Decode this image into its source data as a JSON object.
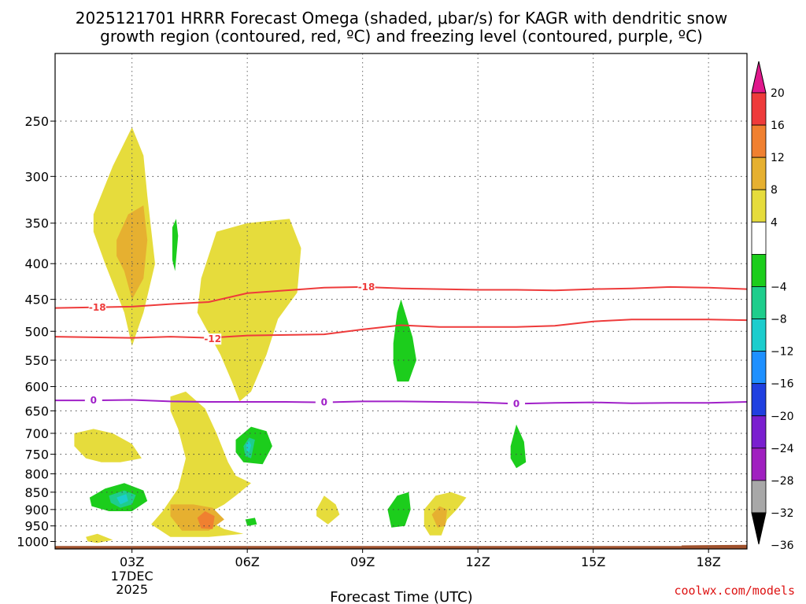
{
  "header": {
    "title_line1": "2025121701 HRRR Forecast Omega (shaded, μbar/s) for KAGR with dendritic snow",
    "title_line2": "growth region (contoured, red, ºC) and freezing level (contoured, purple, ºC)"
  },
  "credit": "coolwx.com/models",
  "chart_data": {
    "type": "time-height cross-section",
    "title": "2025121701 HRRR Forecast Omega (shaded, μbar/s) for KAGR with dendritic snow growth region (contoured, red, ºC) and freezing level (contoured, purple, ºC)",
    "xlabel": "Forecast Time (UTC)",
    "ylabel": "",
    "x_range_hours": [
      1,
      19
    ],
    "y_range_hPa": [
      1025,
      200
    ],
    "y_scale": "log-pressure",
    "x_ticks": [
      {
        "hour": 3,
        "label": "03Z",
        "sublabel1": "17DEC",
        "sublabel2": "2025"
      },
      {
        "hour": 6,
        "label": "06Z"
      },
      {
        "hour": 9,
        "label": "09Z"
      },
      {
        "hour": 12,
        "label": "12Z"
      },
      {
        "hour": 15,
        "label": "15Z"
      },
      {
        "hour": 18,
        "label": "18Z"
      }
    ],
    "y_ticks": [
      250,
      300,
      350,
      400,
      450,
      500,
      550,
      600,
      650,
      700,
      750,
      800,
      850,
      900,
      950,
      1000
    ],
    "grid": true,
    "colorbar": {
      "position": "right",
      "labels": [
        "20",
        "16",
        "12",
        "8",
        "4",
        "-4",
        "-8",
        "-12",
        "-16",
        "-20",
        "-24",
        "-28",
        "-32",
        "-36"
      ],
      "bins": [
        {
          "range": [
            20,
            99
          ],
          "color": "#e0188c"
        },
        {
          "range": [
            16,
            20
          ],
          "color": "#ee3b3b"
        },
        {
          "range": [
            12,
            16
          ],
          "color": "#f08030"
        },
        {
          "range": [
            8,
            12
          ],
          "color": "#e6b030"
        },
        {
          "range": [
            4,
            8
          ],
          "color": "#e6dc3c"
        },
        {
          "range": [
            -4,
            4
          ],
          "color": "#ffffff"
        },
        {
          "range": [
            -8,
            -4
          ],
          "color": "#1ccd1c"
        },
        {
          "range": [
            -12,
            -8
          ],
          "color": "#1ecd8c"
        },
        {
          "range": [
            -16,
            -12
          ],
          "color": "#1ccdcd"
        },
        {
          "range": [
            -20,
            -16
          ],
          "color": "#1e90ff"
        },
        {
          "range": [
            -24,
            -20
          ],
          "color": "#2040e0"
        },
        {
          "range": [
            -28,
            -24
          ],
          "color": "#7a1fcf"
        },
        {
          "range": [
            -32,
            -28
          ],
          "color": "#a020c0"
        },
        {
          "range": [
            -36,
            -32
          ],
          "color": "#a8a8a8"
        },
        {
          "range": [
            -99,
            -36
          ],
          "color": "#000000"
        }
      ]
    },
    "contours": [
      {
        "name": "-18",
        "color": "#ee3b3b",
        "points": [
          [
            1.0,
            463
          ],
          [
            2.0,
            462
          ],
          [
            3.0,
            461
          ],
          [
            4.0,
            457
          ],
          [
            5.0,
            454
          ],
          [
            6.0,
            441
          ],
          [
            7.0,
            437
          ],
          [
            8.0,
            433
          ],
          [
            9.0,
            432
          ],
          [
            10.0,
            434
          ],
          [
            11.0,
            435
          ],
          [
            12.0,
            436
          ],
          [
            13.0,
            436
          ],
          [
            14.0,
            437
          ],
          [
            15.0,
            435
          ],
          [
            16.0,
            434
          ],
          [
            17.0,
            432
          ],
          [
            18.0,
            433
          ],
          [
            19.0,
            435
          ]
        ],
        "label_positions": [
          [
            2.1,
            462
          ],
          [
            9.1,
            432
          ]
        ]
      },
      {
        "name": "-12",
        "color": "#ee3b3b",
        "points": [
          [
            1.0,
            509
          ],
          [
            2.0,
            510
          ],
          [
            3.0,
            511
          ],
          [
            4.0,
            509
          ],
          [
            5.0,
            511
          ],
          [
            6.0,
            507
          ],
          [
            7.0,
            506
          ],
          [
            8.0,
            505
          ],
          [
            9.0,
            497
          ],
          [
            10.0,
            490
          ],
          [
            11.0,
            493
          ],
          [
            12.0,
            493
          ],
          [
            13.0,
            493
          ],
          [
            14.0,
            491
          ],
          [
            15.0,
            484
          ],
          [
            16.0,
            481
          ],
          [
            17.0,
            481
          ],
          [
            18.0,
            481
          ],
          [
            19.0,
            482
          ]
        ],
        "label_positions": [
          [
            5.1,
            513
          ]
        ]
      },
      {
        "name": "0",
        "color": "#a020c8",
        "points": [
          [
            1.0,
            628
          ],
          [
            2.0,
            628
          ],
          [
            3.0,
            627
          ],
          [
            4.0,
            630
          ],
          [
            5.0,
            631
          ],
          [
            6.0,
            631
          ],
          [
            7.0,
            631
          ],
          [
            8.0,
            632
          ],
          [
            9.0,
            630
          ],
          [
            10.0,
            630
          ],
          [
            11.0,
            631
          ],
          [
            12.0,
            632
          ],
          [
            13.0,
            635
          ],
          [
            14.0,
            633
          ],
          [
            15.0,
            632
          ],
          [
            16.0,
            634
          ],
          [
            17.0,
            633
          ],
          [
            18.0,
            633
          ],
          [
            19.0,
            631
          ]
        ],
        "label_positions": [
          [
            2.0,
            628
          ],
          [
            8.0,
            632
          ],
          [
            13.0,
            635
          ]
        ]
      }
    ],
    "shaded_regions": [
      {
        "color": "#e6dc3c",
        "points": [
          [
            2.0,
            340
          ],
          [
            2.5,
            290
          ],
          [
            3.0,
            255
          ],
          [
            3.3,
            280
          ],
          [
            3.4,
            320
          ],
          [
            3.6,
            400
          ],
          [
            3.3,
            470
          ],
          [
            3.0,
            525
          ],
          [
            2.8,
            470
          ],
          [
            2.3,
            400
          ],
          [
            2.0,
            360
          ]
        ]
      },
      {
        "color": "#e6b030",
        "points": [
          [
            2.6,
            370
          ],
          [
            2.9,
            340
          ],
          [
            3.3,
            330
          ],
          [
            3.4,
            370
          ],
          [
            3.3,
            420
          ],
          [
            3.0,
            450
          ],
          [
            2.8,
            410
          ],
          [
            2.6,
            390
          ]
        ]
      },
      {
        "color": "#e6dc3c",
        "points": [
          [
            4.8,
            420
          ],
          [
            5.2,
            360
          ],
          [
            6.0,
            350
          ],
          [
            7.1,
            345
          ],
          [
            7.4,
            380
          ],
          [
            7.3,
            440
          ],
          [
            6.8,
            480
          ],
          [
            6.5,
            540
          ],
          [
            6.1,
            610
          ],
          [
            5.8,
            630
          ],
          [
            5.6,
            590
          ],
          [
            5.3,
            540
          ],
          [
            4.7,
            470
          ]
        ]
      },
      {
        "color": "#1ccd1c",
        "points": [
          [
            4.05,
            355
          ],
          [
            4.15,
            345
          ],
          [
            4.2,
            365
          ],
          [
            4.12,
            410
          ],
          [
            4.05,
            395
          ]
        ]
      },
      {
        "color": "#1ccd1c",
        "points": [
          [
            9.8,
            520
          ],
          [
            9.9,
            470
          ],
          [
            10.0,
            450
          ],
          [
            10.3,
            510
          ],
          [
            10.4,
            550
          ],
          [
            10.2,
            590
          ],
          [
            9.9,
            590
          ],
          [
            9.8,
            555
          ]
        ]
      },
      {
        "color": "#e6dc3c",
        "points": [
          [
            1.5,
            700
          ],
          [
            2.0,
            690
          ],
          [
            2.5,
            700
          ],
          [
            3.0,
            725
          ],
          [
            3.25,
            760
          ],
          [
            2.7,
            770
          ],
          [
            2.2,
            770
          ],
          [
            1.8,
            760
          ],
          [
            1.5,
            730
          ]
        ]
      },
      {
        "color": "#e6dc3c",
        "points": [
          [
            4.0,
            620
          ],
          [
            4.4,
            610
          ],
          [
            4.9,
            645
          ],
          [
            5.2,
            700
          ],
          [
            5.5,
            770
          ],
          [
            5.7,
            805
          ],
          [
            6.1,
            825
          ],
          [
            5.7,
            860
          ],
          [
            5.4,
            885
          ],
          [
            5.0,
            910
          ],
          [
            5.0,
            935
          ],
          [
            5.4,
            960
          ],
          [
            5.9,
            975
          ],
          [
            5.0,
            985
          ],
          [
            4.0,
            985
          ],
          [
            3.5,
            945
          ],
          [
            3.8,
            905
          ],
          [
            4.2,
            840
          ],
          [
            4.4,
            760
          ],
          [
            4.2,
            690
          ],
          [
            4.0,
            650
          ]
        ]
      },
      {
        "color": "#e6b030",
        "points": [
          [
            4.0,
            885
          ],
          [
            4.6,
            885
          ],
          [
            5.1,
            895
          ],
          [
            5.4,
            930
          ],
          [
            5.0,
            965
          ],
          [
            4.3,
            965
          ],
          [
            4.0,
            920
          ]
        ]
      },
      {
        "color": "#f08030",
        "points": [
          [
            4.7,
            925
          ],
          [
            4.9,
            905
          ],
          [
            5.15,
            920
          ],
          [
            5.1,
            960
          ],
          [
            4.8,
            958
          ]
        ]
      },
      {
        "color": "#1ccd1c",
        "points": [
          [
            5.7,
            715
          ],
          [
            6.1,
            685
          ],
          [
            6.5,
            695
          ],
          [
            6.65,
            730
          ],
          [
            6.4,
            775
          ],
          [
            5.9,
            770
          ],
          [
            5.7,
            745
          ]
        ]
      },
      {
        "color": "#1ecd8c",
        "points": [
          [
            5.9,
            730
          ],
          [
            6.05,
            710
          ],
          [
            6.2,
            715
          ],
          [
            6.1,
            760
          ],
          [
            5.95,
            755
          ]
        ]
      },
      {
        "color": "#1ccdcd",
        "points": [
          [
            5.97,
            725
          ],
          [
            6.05,
            718
          ],
          [
            6.1,
            728
          ],
          [
            6.05,
            745
          ],
          [
            5.98,
            740
          ]
        ]
      },
      {
        "color": "#1ccd1c",
        "points": [
          [
            1.9,
            865
          ],
          [
            2.3,
            840
          ],
          [
            2.8,
            825
          ],
          [
            3.3,
            845
          ],
          [
            3.4,
            875
          ],
          [
            3.0,
            905
          ],
          [
            2.4,
            905
          ],
          [
            1.95,
            890
          ]
        ]
      },
      {
        "color": "#1ecd8c",
        "points": [
          [
            2.4,
            860
          ],
          [
            2.8,
            845
          ],
          [
            3.1,
            858
          ],
          [
            3.0,
            885
          ],
          [
            2.7,
            895
          ],
          [
            2.45,
            880
          ]
        ]
      },
      {
        "color": "#1ccdcd",
        "points": [
          [
            2.6,
            865
          ],
          [
            2.85,
            855
          ],
          [
            2.9,
            875
          ],
          [
            2.7,
            885
          ]
        ]
      },
      {
        "color": "#1ccd1c",
        "points": [
          [
            5.95,
            930
          ],
          [
            6.2,
            925
          ],
          [
            6.25,
            945
          ],
          [
            6.0,
            950
          ]
        ]
      },
      {
        "color": "#e6dc3c",
        "points": [
          [
            1.8,
            985
          ],
          [
            2.1,
            975
          ],
          [
            2.5,
            995
          ],
          [
            2.1,
            1005
          ],
          [
            1.85,
            1000
          ]
        ]
      },
      {
        "color": "#e6dc3c",
        "points": [
          [
            7.8,
            900
          ],
          [
            8.0,
            860
          ],
          [
            8.3,
            885
          ],
          [
            8.4,
            915
          ],
          [
            8.1,
            945
          ],
          [
            7.8,
            920
          ]
        ]
      },
      {
        "color": "#1ccd1c",
        "points": [
          [
            9.65,
            900
          ],
          [
            9.9,
            860
          ],
          [
            10.2,
            850
          ],
          [
            10.25,
            900
          ],
          [
            10.1,
            950
          ],
          [
            9.75,
            955
          ]
        ]
      },
      {
        "color": "#e6dc3c",
        "points": [
          [
            10.6,
            900
          ],
          [
            10.9,
            860
          ],
          [
            11.3,
            850
          ],
          [
            11.7,
            865
          ],
          [
            11.45,
            900
          ],
          [
            11.2,
            930
          ],
          [
            11.05,
            980
          ],
          [
            10.75,
            980
          ],
          [
            10.6,
            950
          ]
        ]
      },
      {
        "color": "#e6b030",
        "points": [
          [
            10.8,
            915
          ],
          [
            11.0,
            890
          ],
          [
            11.2,
            900
          ],
          [
            11.15,
            950
          ],
          [
            10.95,
            955
          ]
        ]
      },
      {
        "color": "#1ccd1c",
        "points": [
          [
            12.85,
            730
          ],
          [
            13.0,
            680
          ],
          [
            13.2,
            720
          ],
          [
            13.25,
            770
          ],
          [
            13.0,
            785
          ],
          [
            12.85,
            760
          ]
        ]
      },
      {
        "color": "#a0522d",
        "points": [
          [
            1.0,
            1015
          ],
          [
            17.3,
            1015
          ],
          [
            17.3,
            1013
          ],
          [
            19.0,
            1011
          ],
          [
            19.0,
            1030
          ],
          [
            1.0,
            1030
          ]
        ]
      }
    ]
  }
}
